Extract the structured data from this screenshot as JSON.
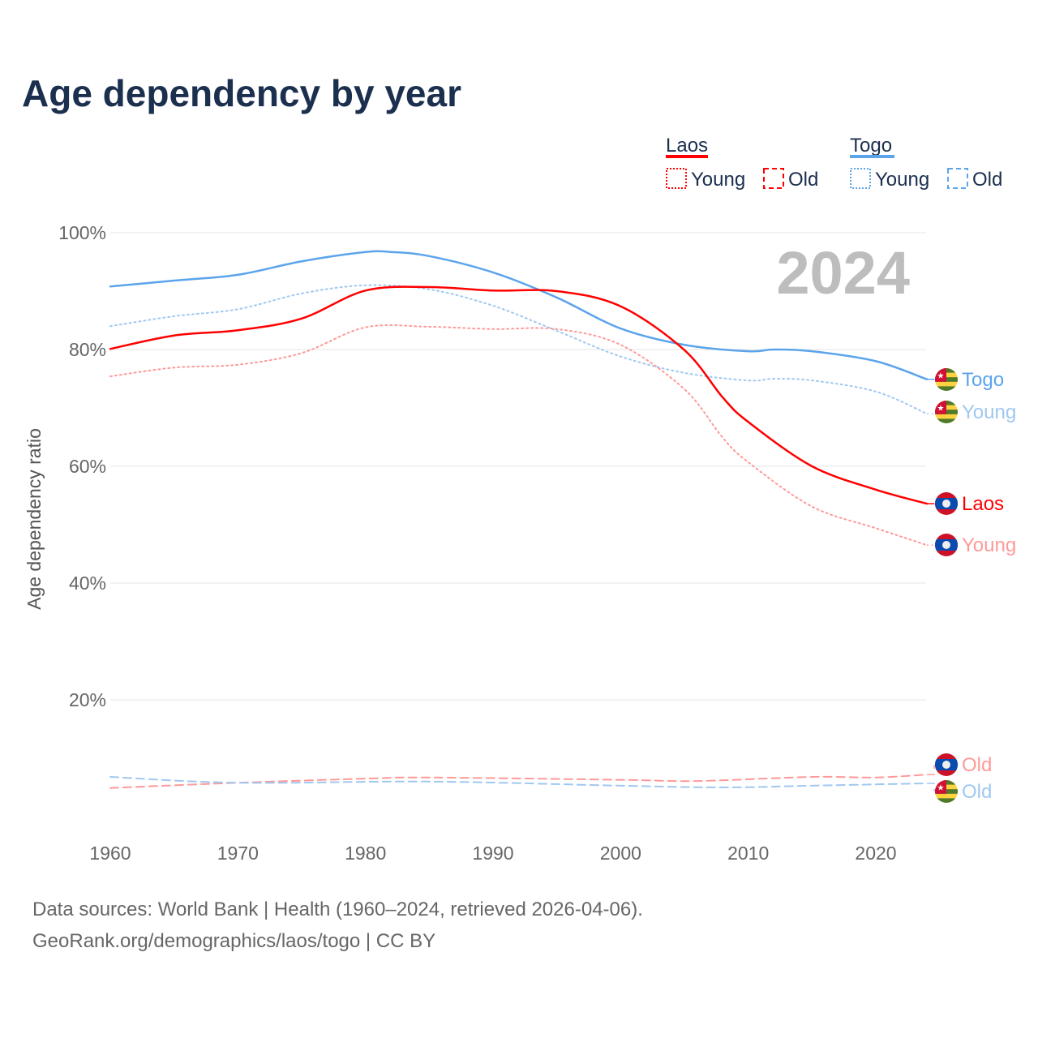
{
  "title": "Age dependency by year",
  "year_badge": "2024",
  "source_line1": "Data sources: World Bank | Health (1960–2024, retrieved 2026-04-06).",
  "source_line2": "GeoRank.org/demographics/laos/togo | CC BY",
  "legend": {
    "groups": [
      {
        "country": "Laos",
        "color": "#ff0000",
        "items": [
          {
            "label": "Young",
            "style": "dotted"
          },
          {
            "label": "Old",
            "style": "dashed"
          }
        ]
      },
      {
        "country": "Togo",
        "color": "#5ba4ec",
        "items": [
          {
            "label": "Young",
            "style": "dotted"
          },
          {
            "label": "Old",
            "style": "dashed"
          }
        ]
      }
    ]
  },
  "chart_data": {
    "type": "line",
    "title": "Age dependency by year",
    "xlabel": "",
    "ylabel": "Age dependency ratio",
    "xlim": [
      1960,
      2024
    ],
    "ylim": [
      0,
      100
    ],
    "x_ticks": [
      "1960",
      "1970",
      "1980",
      "1990",
      "2000",
      "2010",
      "2020"
    ],
    "y_ticks": [
      "20%",
      "40%",
      "60%",
      "80%",
      "100%"
    ],
    "grid": true,
    "series": [
      {
        "name": "Togo",
        "end_label": "Togo",
        "flag": "togo",
        "color": "#5ba4ec",
        "style": "solid",
        "x": [
          1960,
          1965,
          1970,
          1975,
          1980,
          1982,
          1985,
          1990,
          1995,
          2000,
          2005,
          2010,
          2012,
          2015,
          2020,
          2024
        ],
        "y": [
          90.8,
          91.8,
          92.8,
          95.1,
          96.7,
          96.7,
          96.0,
          93.2,
          88.9,
          83.6,
          80.8,
          79.7,
          80.0,
          79.7,
          78.0,
          74.9
        ]
      },
      {
        "name": "Togo Young",
        "end_label": "Young",
        "flag": "togo",
        "color": "#a0c8f0",
        "style": "dotted",
        "x": [
          1960,
          1965,
          1970,
          1975,
          1980,
          1985,
          1990,
          1995,
          2000,
          2005,
          2010,
          2012,
          2015,
          2020,
          2024
        ],
        "y": [
          84.0,
          85.7,
          86.9,
          89.6,
          91.0,
          90.3,
          87.5,
          83.2,
          78.8,
          76.0,
          74.7,
          75.0,
          74.7,
          72.8,
          69.0
        ]
      },
      {
        "name": "Laos",
        "end_label": "Laos",
        "flag": "laos",
        "color": "#ff0000",
        "style": "solid",
        "x": [
          1960,
          1965,
          1970,
          1975,
          1980,
          1985,
          1990,
          1995,
          2000,
          2005,
          2008,
          2010,
          2015,
          2020,
          2024
        ],
        "y": [
          80.1,
          82.4,
          83.3,
          85.3,
          90.1,
          90.7,
          90.1,
          90.0,
          87.4,
          79.9,
          71.8,
          67.6,
          60.0,
          56.0,
          53.6
        ]
      },
      {
        "name": "Laos Young",
        "end_label": "Young",
        "flag": "laos",
        "color": "#ff9999",
        "style": "dotted",
        "x": [
          1960,
          1965,
          1970,
          1975,
          1980,
          1985,
          1990,
          1995,
          2000,
          2005,
          2008,
          2010,
          2015,
          2020,
          2024
        ],
        "y": [
          75.4,
          76.9,
          77.4,
          79.4,
          83.8,
          83.9,
          83.5,
          83.5,
          80.8,
          73.2,
          64.9,
          60.7,
          53.1,
          49.4,
          46.5
        ]
      },
      {
        "name": "Laos Old",
        "end_label": "Old",
        "flag": "laos",
        "color": "#ff9999",
        "style": "dashed",
        "x": [
          1960,
          1970,
          1980,
          1985,
          2000,
          2006,
          2015,
          2020,
          2024
        ],
        "y": [
          4.9,
          5.8,
          6.5,
          6.7,
          6.3,
          6.1,
          6.8,
          6.7,
          7.2
        ]
      },
      {
        "name": "Togo Old",
        "end_label": "Old",
        "flag": "togo",
        "color": "#a0c8f0",
        "style": "dashed",
        "x": [
          1960,
          1970,
          1985,
          2000,
          2008,
          2015,
          2024
        ],
        "y": [
          6.8,
          5.8,
          6.0,
          5.3,
          5.0,
          5.3,
          5.7
        ]
      }
    ]
  }
}
